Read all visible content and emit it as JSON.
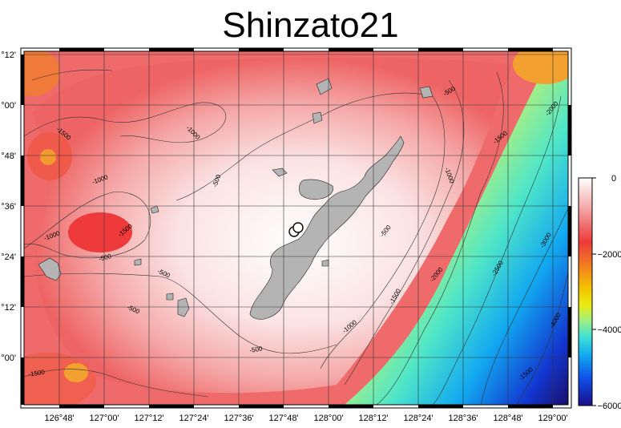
{
  "title": "Shinzato21",
  "map": {
    "lon_ticks": [
      "126°48'",
      "127°00'",
      "127°12'",
      "127°24'",
      "127°36'",
      "127°48'",
      "128°00'",
      "128°12'",
      "128°24'",
      "128°36'",
      "128°48'",
      "129°00'"
    ],
    "lat_ticks": [
      "°12'",
      "°00'",
      "°48'",
      "°36'",
      "°24'",
      "°12'",
      "°00'"
    ],
    "contour_labels": [
      "-1500",
      "-1000",
      "-500",
      "-500",
      "-1000",
      "-1500",
      "-500",
      "-1000",
      "-500",
      "-500",
      "-500",
      "-500",
      "-1000",
      "-1500",
      "-2000",
      "-2500",
      "-3000",
      "-2000",
      "-1500",
      "-1000",
      "-500",
      "-1500",
      "-4000",
      "-1500"
    ],
    "land_color": "#b4b4b4"
  },
  "colorbar": {
    "tick_labels": [
      "0",
      "−2000",
      "−4000",
      "−6000"
    ],
    "tick_values": [
      0,
      -2000,
      -4000,
      -6000
    ],
    "range": [
      -6000,
      0
    ],
    "colors": [
      "#ffffff",
      "#f7c8c8",
      "#f08080",
      "#ec3a3a",
      "#f27a22",
      "#f5b000",
      "#f0e400",
      "#aef07a",
      "#4fe6c8",
      "#12b8f0",
      "#0f62f0",
      "#1228c8",
      "#1a0f8a"
    ]
  }
}
